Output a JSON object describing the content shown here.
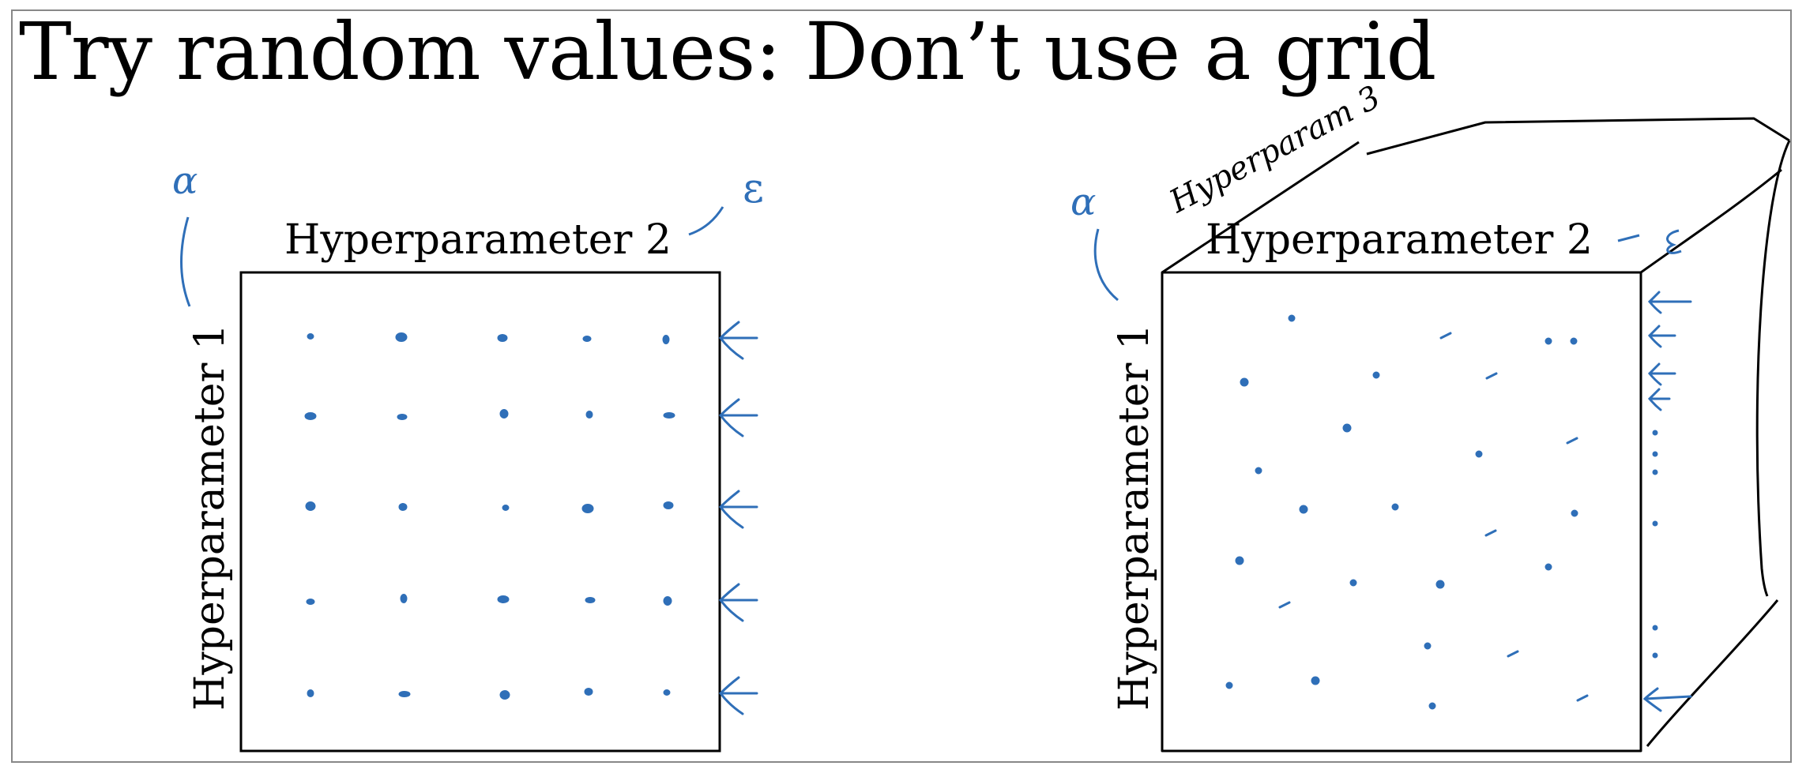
{
  "title": "Try random values: Don’t use a grid",
  "left_panel": {
    "x_axis_label": "Hyperparameter 2",
    "y_axis_label": "Hyperparameter 1"
  },
  "right_panel": {
    "x_axis_label": "Hyperparameter 2",
    "y_axis_label": "Hyperparameter 1",
    "z_axis_label": "Hyperparam 3"
  },
  "annotations": {
    "alpha_symbol": "α",
    "epsilon_symbol": "ε"
  },
  "colors": {
    "ink_blue": "#2f6fb8",
    "ink_black": "#000000",
    "frame_border": "#888888"
  }
}
